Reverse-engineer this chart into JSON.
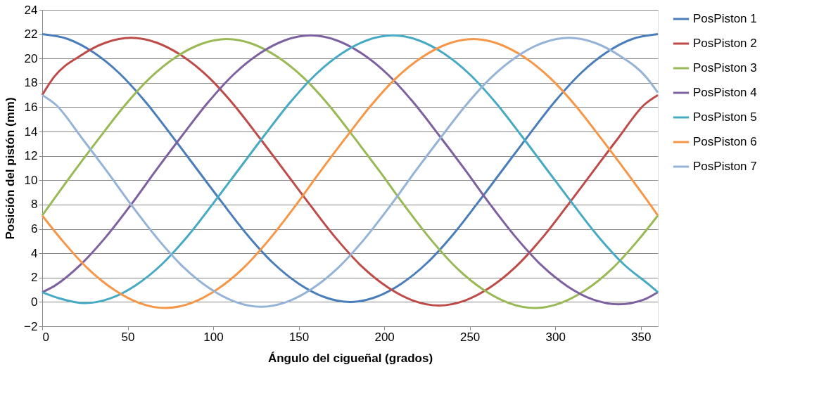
{
  "chart_data": {
    "type": "line",
    "xlabel": "Ángulo del cigueñal (grados)",
    "ylabel": "Posición del pistón (mm)",
    "xlim": [
      0,
      360
    ],
    "xticks": [
      0,
      50,
      100,
      150,
      200,
      250,
      300,
      350
    ],
    "ylim": [
      -2,
      24
    ],
    "yticks": [
      -2,
      0,
      2,
      4,
      6,
      8,
      10,
      12,
      14,
      16,
      18,
      20,
      22,
      24
    ],
    "grid": "y",
    "legend": "right",
    "series": [
      {
        "name": "PosPiston 1",
        "color": "#4a7ebb",
        "x": [
          0,
          15,
          30,
          45,
          60,
          75,
          90,
          105,
          120,
          135,
          150,
          165,
          180,
          195,
          210,
          225,
          240,
          255,
          270,
          285,
          300,
          315,
          330,
          345,
          360
        ],
        "values": [
          22,
          21.6,
          20.5,
          18.8,
          16.5,
          13.8,
          11,
          8.2,
          5.5,
          3.2,
          1.5,
          0.4,
          0,
          0.4,
          1.5,
          3.2,
          5.5,
          8.2,
          11,
          13.8,
          16.5,
          18.8,
          20.5,
          21.6,
          22
        ]
      },
      {
        "name": "PosPiston 2",
        "color": "#be4b48",
        "x": [
          0,
          7,
          22,
          37,
          52,
          67,
          82,
          97,
          112,
          127,
          142,
          157,
          172,
          187,
          202,
          217,
          232,
          247,
          262,
          277,
          292,
          307,
          322,
          337,
          352,
          360
        ],
        "values": [
          17,
          18.5,
          20.2,
          21.3,
          21.7,
          21.3,
          20.2,
          18.5,
          16.2,
          13.5,
          10.7,
          7.9,
          5.2,
          2.9,
          1.2,
          0.1,
          -0.3,
          0.1,
          1.2,
          2.9,
          5.2,
          7.9,
          10.7,
          13.5,
          16.2,
          17
        ]
      },
      {
        "name": "PosPiston 3",
        "color": "#98b954",
        "x": [
          0,
          18,
          33,
          48,
          63,
          78,
          93,
          108,
          123,
          138,
          153,
          168,
          183,
          198,
          213,
          228,
          243,
          258,
          273,
          288,
          303,
          318,
          333,
          348,
          360
        ],
        "values": [
          7.1,
          10.6,
          13.4,
          16.1,
          18.4,
          20.1,
          21.2,
          21.6,
          21.2,
          20.1,
          18.4,
          16.1,
          13.4,
          10.6,
          7.7,
          5.0,
          2.7,
          1.0,
          -0.1,
          -0.5,
          -0.1,
          1.0,
          2.7,
          5.0,
          7.1
        ]
      },
      {
        "name": "PosPiston 4",
        "color": "#7d60a0",
        "x": [
          0,
          7,
          22,
          37,
          52,
          67,
          82,
          97,
          112,
          127,
          142,
          157,
          172,
          187,
          202,
          217,
          232,
          247,
          262,
          277,
          292,
          307,
          322,
          337,
          352,
          360
        ],
        "values": [
          0.8,
          1.3,
          3.0,
          5.3,
          8.0,
          10.9,
          13.7,
          16.4,
          18.7,
          20.4,
          21.5,
          21.9,
          21.5,
          20.4,
          18.7,
          16.4,
          13.7,
          10.9,
          8.0,
          5.3,
          3.0,
          1.3,
          0.2,
          -0.2,
          0.2,
          0.8
        ]
      },
      {
        "name": "PosPiston 5",
        "color": "#46aac5",
        "x": [
          0,
          10,
          25,
          40,
          55,
          70,
          85,
          100,
          115,
          130,
          145,
          160,
          175,
          190,
          205,
          220,
          235,
          250,
          265,
          280,
          295,
          310,
          325,
          340,
          355,
          360
        ],
        "values": [
          0.8,
          0.3,
          -0.1,
          0.3,
          1.4,
          3.1,
          5.4,
          8.1,
          10.9,
          13.7,
          16.4,
          18.7,
          20.4,
          21.5,
          21.9,
          21.5,
          20.4,
          18.7,
          16.4,
          13.7,
          10.9,
          8.1,
          5.4,
          3.1,
          1.4,
          0.8
        ]
      },
      {
        "name": "PosPiston 6",
        "color": "#f79646",
        "x": [
          0,
          12,
          27,
          42,
          57,
          72,
          87,
          102,
          117,
          132,
          147,
          162,
          177,
          192,
          207,
          222,
          237,
          252,
          267,
          282,
          297,
          312,
          327,
          342,
          357,
          360
        ],
        "values": [
          7.1,
          5.0,
          2.7,
          1.0,
          -0.1,
          -0.5,
          -0.1,
          1.0,
          2.7,
          5.0,
          7.7,
          10.6,
          13.4,
          16.1,
          18.4,
          20.1,
          21.2,
          21.6,
          21.2,
          20.1,
          18.4,
          16.1,
          13.4,
          10.6,
          7.7,
          7.1
        ]
      },
      {
        "name": "PosPiston 7",
        "color": "#95b3d7",
        "x": [
          0,
          8,
          23,
          38,
          53,
          68,
          83,
          98,
          113,
          128,
          143,
          158,
          173,
          188,
          203,
          218,
          233,
          248,
          263,
          278,
          293,
          308,
          323,
          338,
          353,
          360
        ],
        "values": [
          17,
          16.2,
          13.5,
          10.7,
          7.8,
          5.1,
          2.8,
          1.1,
          0.0,
          -0.4,
          0.0,
          1.1,
          2.8,
          5.1,
          7.8,
          10.7,
          13.5,
          16.2,
          18.5,
          20.2,
          21.3,
          21.7,
          21.3,
          20.2,
          18.5,
          17.2
        ]
      }
    ]
  }
}
